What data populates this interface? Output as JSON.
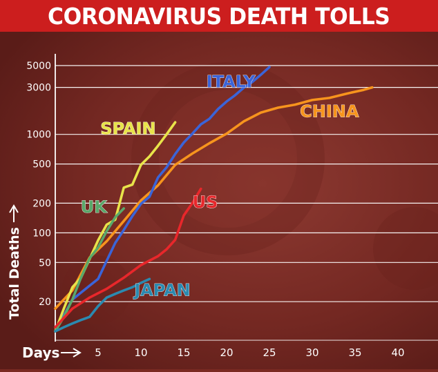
{
  "header": {
    "title": "CORONAVIRUS DEATH TOLLS"
  },
  "colors": {
    "header_bg": "#cc1e1e",
    "background": "#7a2a22",
    "grid": "#ffffff",
    "text": "#ffffff"
  },
  "chart_data": {
    "type": "line",
    "title": "CORONAVIRUS DEATH TOLLS",
    "xlabel": "Days",
    "ylabel": "Total Deaths",
    "xlim": [
      0,
      40
    ],
    "ylim": [
      10,
      5000
    ],
    "yscale": "log",
    "xticks": [
      5,
      10,
      15,
      20,
      25,
      30,
      35,
      40
    ],
    "yticks": [
      20,
      50,
      100,
      200,
      500,
      1000,
      3000,
      5000
    ],
    "grid": "horizontal",
    "legend": "inline labels",
    "series": [
      {
        "name": "CHINA",
        "color": "#f7941d",
        "x": [
          0,
          2,
          4,
          6,
          8,
          10,
          12,
          14,
          16,
          18,
          20,
          22,
          24,
          26,
          28,
          30,
          32,
          34,
          36,
          37
        ],
        "y": [
          17,
          26,
          56,
          82,
          132,
          213,
          304,
          490,
          638,
          813,
          1016,
          1355,
          1665,
          1868,
          2004,
          2236,
          2345,
          2592,
          2835,
          3000
        ]
      },
      {
        "name": "ITALY",
        "color": "#3b64d8",
        "x": [
          0,
          2,
          4,
          5,
          6,
          7,
          8,
          9,
          10,
          11,
          12,
          13,
          14,
          15,
          16,
          17,
          18,
          19,
          20,
          21,
          22,
          23,
          24,
          25
        ],
        "y": [
          10,
          21,
          29,
          34,
          52,
          79,
          107,
          148,
          197,
          233,
          366,
          463,
          631,
          827,
          1016,
          1266,
          1441,
          1809,
          2158,
          2503,
          2978,
          3405,
          4032,
          4825
        ]
      },
      {
        "name": "SPAIN",
        "color": "#e8e34a",
        "x": [
          0,
          1,
          2,
          3,
          4,
          5,
          6,
          7,
          8,
          9,
          10,
          11,
          12,
          13,
          14
        ],
        "y": [
          10,
          17,
          28,
          35,
          54,
          84,
          121,
          136,
          288,
          309,
          491,
          598,
          767,
          1002,
          1326
        ]
      },
      {
        "name": "UK",
        "color": "#5aa86a",
        "x": [
          0,
          1,
          2,
          3,
          4,
          5,
          6,
          7,
          8
        ],
        "y": [
          10,
          14,
          21,
          35,
          55,
          71,
          104,
          144,
          177
        ]
      },
      {
        "name": "US",
        "color": "#e8272b",
        "x": [
          0,
          2,
          4,
          6,
          8,
          10,
          12,
          13,
          14,
          15,
          16,
          17
        ],
        "y": [
          11,
          17,
          22,
          27,
          35,
          47,
          58,
          68,
          85,
          150,
          200,
          280
        ]
      },
      {
        "name": "JAPAN",
        "color": "#2b8ab0",
        "x": [
          0,
          1,
          2,
          3,
          4,
          5,
          6,
          7,
          8,
          9,
          10,
          11
        ],
        "y": [
          10,
          11,
          12,
          13,
          14,
          18,
          22,
          24,
          26,
          28,
          31,
          34
        ]
      }
    ]
  }
}
